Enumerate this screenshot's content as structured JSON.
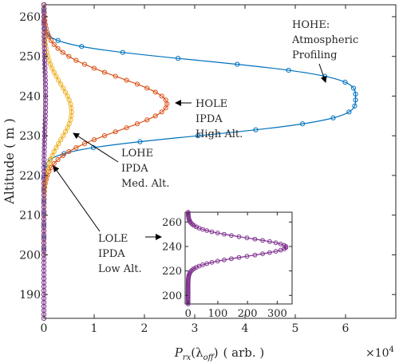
{
  "chart_data": [
    {
      "type": "line",
      "xlabel": "P",
      "xlabel_sub": "rx",
      "xlabel_arg_open": "(λ",
      "xlabel_arg_sub": "off",
      "xlabel_arg_close": ")",
      "xlabel_unit": "( arb. )",
      "ylabel": "Altitude ( m )",
      "x_multiplier": "×10",
      "x_multiplier_exp": "4",
      "xlim": [
        0,
        70000
      ],
      "ylim": [
        184,
        263
      ],
      "xticks": [
        0,
        10000,
        20000,
        30000,
        40000,
        50000,
        60000
      ],
      "xtick_labels": [
        "0",
        "1",
        "2",
        "3",
        "4",
        "5",
        "6"
      ],
      "yticks": [
        190,
        200,
        210,
        220,
        230,
        240,
        250,
        260
      ],
      "ytick_labels": [
        "190",
        "200",
        "210",
        "220",
        "230",
        "240",
        "250",
        "260"
      ],
      "grid": false,
      "series": [
        {
          "name": "HOHE",
          "color": "#0072BD",
          "peak": 62000,
          "center": 239.5,
          "sigma": 10.5,
          "power": 3.5,
          "ymin": 200,
          "ymax": 263,
          "step": 1.5
        },
        {
          "name": "HOLE",
          "color": "#D95319",
          "peak": 24500,
          "center": 238,
          "sigma": 9.5,
          "power": 2.0,
          "ymin": 200,
          "ymax": 263,
          "step": 1.0
        },
        {
          "name": "LOHE",
          "color": "#EDB120",
          "peak": 5500,
          "center": 236,
          "sigma": 10.0,
          "power": 2.0,
          "ymin": 200,
          "ymax": 263,
          "step": 1.0
        },
        {
          "name": "LOLE",
          "color": "#7E2F8E",
          "peak": 350,
          "center": 239.5,
          "sigma": 10.5,
          "power": 2.0,
          "ymin": 184,
          "ymax": 263,
          "step": 1.0
        }
      ],
      "annotations": [
        {
          "id": "hohe",
          "lines": [
            "HOHE:",
            "Atmospheric",
            "Profiling"
          ]
        },
        {
          "id": "hole",
          "lines": [
            "HOLE",
            "IPDA",
            "High Alt."
          ]
        },
        {
          "id": "lohe",
          "lines": [
            "LOHE",
            "IPDA",
            "Med. Alt."
          ]
        },
        {
          "id": "lole",
          "lines": [
            "LOLE",
            "IPDA",
            "Low Alt."
          ]
        }
      ]
    },
    {
      "type": "line",
      "xlim": [
        -10,
        350
      ],
      "ylim": [
        193,
        268
      ],
      "xticks": [
        0,
        100,
        200,
        300
      ],
      "xtick_labels": [
        "0",
        "100",
        "200",
        "300"
      ],
      "yticks": [
        200,
        220,
        240,
        260
      ],
      "ytick_labels": [
        "200",
        "220",
        "240",
        "260"
      ],
      "grid": false,
      "series": [
        {
          "name": "LOLE",
          "color": "#7E2F8E",
          "peak": 330,
          "center": 239.5,
          "sigma": 10.5,
          "power": 2.0,
          "ymin": 193,
          "ymax": 268,
          "step": 1.0
        }
      ]
    }
  ]
}
